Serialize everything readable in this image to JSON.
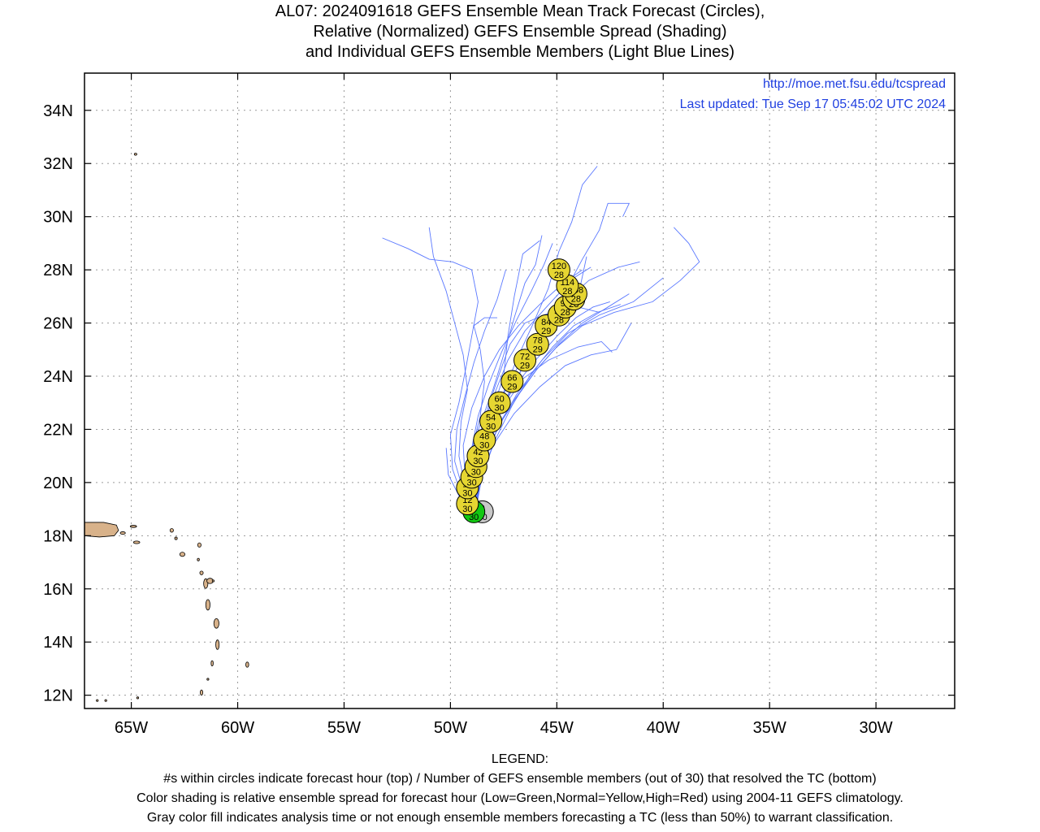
{
  "title": {
    "line1": "AL07: 2024091618 GEFS Ensemble Mean Track Forecast (Circles),",
    "line2": "Relative (Normalized) GEFS Ensemble Spread (Shading)",
    "line3": "and Individual GEFS Ensemble Members (Light Blue Lines)"
  },
  "annotations": {
    "url": "http://moe.met.fsu.edu/tcspread",
    "updated": "Last updated: Tue Sep 17 05:45:02 UTC 2024"
  },
  "axes": {
    "lon_range": [
      -67.2,
      -26.3
    ],
    "lat_range": [
      11.5,
      35.4
    ],
    "x_ticks": [
      {
        "lon": -65,
        "label": "65W"
      },
      {
        "lon": -60,
        "label": "60W"
      },
      {
        "lon": -55,
        "label": "55W"
      },
      {
        "lon": -50,
        "label": "50W"
      },
      {
        "lon": -45,
        "label": "45W"
      },
      {
        "lon": -40,
        "label": "40W"
      },
      {
        "lon": -35,
        "label": "35W"
      },
      {
        "lon": -30,
        "label": "30W"
      }
    ],
    "y_ticks": [
      {
        "lat": 34,
        "label": "34N"
      },
      {
        "lat": 32,
        "label": "32N"
      },
      {
        "lat": 30,
        "label": "30N"
      },
      {
        "lat": 28,
        "label": "28N"
      },
      {
        "lat": 26,
        "label": "26N"
      },
      {
        "lat": 24,
        "label": "24N"
      },
      {
        "lat": 22,
        "label": "22N"
      },
      {
        "lat": 20,
        "label": "20N"
      },
      {
        "lat": 18,
        "label": "18N"
      },
      {
        "lat": 16,
        "label": "16N"
      },
      {
        "lat": 14,
        "label": "14N"
      },
      {
        "lat": 12,
        "label": "12N"
      }
    ],
    "grid": "dotted"
  },
  "colors": {
    "member_track": "#5a78ff",
    "circle_normal": "#e6d632",
    "circle_low": "#12c812",
    "circle_gray": "#c8c8c8",
    "land": "#d8b28a",
    "annotation": "#1f3fe0"
  },
  "track": [
    {
      "hour": "0",
      "members": "30",
      "lon": -48.5,
      "lat": 18.9,
      "spread": "gray"
    },
    {
      "hour": "6",
      "members": "30",
      "lon": -48.9,
      "lat": 18.9,
      "spread": "low"
    },
    {
      "hour": "12",
      "members": "30",
      "lon": -49.2,
      "lat": 19.2,
      "spread": "normal"
    },
    {
      "hour": "18",
      "members": "30",
      "lon": -49.2,
      "lat": 19.8,
      "spread": "normal"
    },
    {
      "hour": "24",
      "members": "30",
      "lon": -49.0,
      "lat": 20.2,
      "spread": "normal"
    },
    {
      "hour": "36",
      "members": "30",
      "lon": -48.8,
      "lat": 20.6,
      "spread": "normal"
    },
    {
      "hour": "42",
      "members": "30",
      "lon": -48.7,
      "lat": 21.0,
      "spread": "normal"
    },
    {
      "hour": "48",
      "members": "30",
      "lon": -48.4,
      "lat": 21.6,
      "spread": "normal"
    },
    {
      "hour": "54",
      "members": "30",
      "lon": -48.1,
      "lat": 22.3,
      "spread": "normal"
    },
    {
      "hour": "60",
      "members": "30",
      "lon": -47.7,
      "lat": 23.0,
      "spread": "normal"
    },
    {
      "hour": "66",
      "members": "29",
      "lon": -47.1,
      "lat": 23.8,
      "spread": "normal"
    },
    {
      "hour": "72",
      "members": "29",
      "lon": -46.5,
      "lat": 24.6,
      "spread": "normal"
    },
    {
      "hour": "78",
      "members": "29",
      "lon": -45.9,
      "lat": 25.2,
      "spread": "normal"
    },
    {
      "hour": "84",
      "members": "29",
      "lon": -45.5,
      "lat": 25.9,
      "spread": "normal"
    },
    {
      "hour": "90",
      "members": "28",
      "lon": -44.9,
      "lat": 26.3,
      "spread": "normal"
    },
    {
      "hour": "96",
      "members": "28",
      "lon": -44.6,
      "lat": 26.6,
      "spread": "normal"
    },
    {
      "hour": "102",
      "members": "28",
      "lon": -44.2,
      "lat": 26.9,
      "spread": "normal"
    },
    {
      "hour": "108",
      "members": "28",
      "lon": -44.1,
      "lat": 27.1,
      "spread": "normal"
    },
    {
      "hour": "114",
      "members": "28",
      "lon": -44.5,
      "lat": 27.4,
      "spread": "normal"
    },
    {
      "hour": "120",
      "members": "28",
      "lon": -44.9,
      "lat": 28.0,
      "spread": "normal"
    }
  ],
  "members": [
    [
      [
        -48.8,
        19.0
      ],
      [
        -49.5,
        19.6
      ],
      [
        -49.9,
        20.5
      ],
      [
        -50.0,
        21.8
      ],
      [
        -49.6,
        23.0
      ],
      [
        -49.3,
        24.2
      ],
      [
        -49.0,
        25.5
      ],
      [
        -48.7,
        26.8
      ],
      [
        -49.0,
        28.0
      ],
      [
        -49.9,
        28.3
      ],
      [
        -51.0,
        28.4
      ],
      [
        -52.0,
        28.8
      ],
      [
        -53.2,
        29.2
      ]
    ],
    [
      [
        -48.8,
        19.0
      ],
      [
        -49.3,
        19.8
      ],
      [
        -49.6,
        21.0
      ],
      [
        -49.5,
        22.3
      ],
      [
        -49.2,
        23.5
      ],
      [
        -49.4,
        24.8
      ],
      [
        -49.8,
        26.0
      ],
      [
        -50.2,
        27.2
      ],
      [
        -50.8,
        28.5
      ],
      [
        -51.0,
        29.6
      ]
    ],
    [
      [
        -48.8,
        19.0
      ],
      [
        -49.1,
        20.0
      ],
      [
        -49.0,
        21.2
      ],
      [
        -48.6,
        22.5
      ],
      [
        -48.4,
        23.8
      ],
      [
        -48.6,
        25.0
      ],
      [
        -48.9,
        25.9
      ],
      [
        -48.4,
        26.2
      ],
      [
        -47.8,
        26.2
      ]
    ],
    [
      [
        -48.8,
        19.0
      ],
      [
        -49.0,
        20.2
      ],
      [
        -48.6,
        21.5
      ],
      [
        -48.0,
        22.8
      ],
      [
        -47.5,
        24.0
      ],
      [
        -47.3,
        25.5
      ],
      [
        -47.0,
        27.0
      ],
      [
        -46.6,
        28.6
      ],
      [
        -45.8,
        29.1
      ]
    ],
    [
      [
        -48.8,
        19.0
      ],
      [
        -48.8,
        20.4
      ],
      [
        -48.3,
        21.8
      ],
      [
        -47.6,
        23.2
      ],
      [
        -46.9,
        24.6
      ],
      [
        -46.1,
        26.0
      ],
      [
        -45.4,
        27.3
      ],
      [
        -44.9,
        28.7
      ],
      [
        -44.3,
        29.8
      ],
      [
        -43.8,
        31.2
      ],
      [
        -43.1,
        31.9
      ]
    ],
    [
      [
        -48.8,
        19.0
      ],
      [
        -48.6,
        20.5
      ],
      [
        -48.0,
        22.0
      ],
      [
        -47.2,
        23.4
      ],
      [
        -46.3,
        24.8
      ],
      [
        -45.5,
        26.0
      ],
      [
        -44.6,
        27.2
      ],
      [
        -43.8,
        28.4
      ],
      [
        -43.0,
        29.5
      ],
      [
        -42.6,
        30.5
      ],
      [
        -41.6,
        30.5
      ],
      [
        -41.9,
        30.0
      ]
    ],
    [
      [
        -48.8,
        19.0
      ],
      [
        -48.7,
        20.3
      ],
      [
        -48.1,
        21.7
      ],
      [
        -47.1,
        23.0
      ],
      [
        -46.0,
        24.2
      ],
      [
        -45.0,
        25.1
      ],
      [
        -43.8,
        25.9
      ],
      [
        -42.3,
        26.4
      ],
      [
        -40.5,
        26.8
      ],
      [
        -39.2,
        27.6
      ],
      [
        -38.3,
        28.3
      ],
      [
        -38.8,
        29.0
      ],
      [
        -39.5,
        29.6
      ]
    ],
    [
      [
        -48.8,
        19.0
      ],
      [
        -48.9,
        20.2
      ],
      [
        -48.4,
        21.4
      ],
      [
        -47.6,
        22.7
      ],
      [
        -46.6,
        23.9
      ],
      [
        -45.4,
        24.6
      ],
      [
        -44.0,
        25.1
      ],
      [
        -42.9,
        25.3
      ],
      [
        -42.4,
        24.9
      ]
    ],
    [
      [
        -48.8,
        19.0
      ],
      [
        -48.5,
        20.6
      ],
      [
        -47.8,
        22.0
      ],
      [
        -46.9,
        23.3
      ],
      [
        -45.7,
        24.6
      ],
      [
        -44.5,
        25.6
      ],
      [
        -43.0,
        26.3
      ],
      [
        -41.4,
        26.8
      ],
      [
        -40.0,
        27.7
      ]
    ],
    [
      [
        -48.8,
        19.0
      ],
      [
        -49.6,
        19.5
      ],
      [
        -50.1,
        20.3
      ],
      [
        -50.2,
        21.3
      ]
    ],
    [
      [
        -48.8,
        19.0
      ],
      [
        -49.3,
        20.0
      ],
      [
        -49.4,
        21.4
      ],
      [
        -49.0,
        22.8
      ],
      [
        -48.4,
        24.0
      ],
      [
        -47.7,
        25.0
      ],
      [
        -46.8,
        25.9
      ],
      [
        -45.8,
        26.7
      ],
      [
        -44.7,
        27.5
      ],
      [
        -43.8,
        28.0
      ]
    ],
    [
      [
        -48.8,
        19.0
      ],
      [
        -48.9,
        20.1
      ],
      [
        -48.5,
        21.3
      ],
      [
        -47.8,
        22.5
      ],
      [
        -47.0,
        23.6
      ],
      [
        -46.0,
        24.6
      ],
      [
        -45.0,
        25.5
      ],
      [
        -44.1,
        26.2
      ],
      [
        -43.3,
        26.6
      ],
      [
        -42.5,
        26.8
      ]
    ],
    [
      [
        -48.8,
        19.0
      ],
      [
        -49.2,
        19.9
      ],
      [
        -49.1,
        21.0
      ],
      [
        -48.6,
        22.2
      ],
      [
        -48.0,
        23.5
      ],
      [
        -47.5,
        24.8
      ],
      [
        -47.0,
        26.2
      ],
      [
        -46.5,
        27.5
      ],
      [
        -46.0,
        28.2
      ],
      [
        -45.7,
        29.3
      ]
    ],
    [
      [
        -48.8,
        19.0
      ],
      [
        -48.7,
        20.4
      ],
      [
        -48.2,
        21.7
      ],
      [
        -47.5,
        23.0
      ],
      [
        -46.7,
        24.2
      ],
      [
        -45.8,
        25.4
      ],
      [
        -44.9,
        26.5
      ],
      [
        -44.0,
        27.0
      ],
      [
        -43.6,
        28.5
      ]
    ],
    [
      [
        -48.8,
        19.0
      ],
      [
        -49.0,
        20.3
      ],
      [
        -48.7,
        21.6
      ],
      [
        -48.2,
        22.9
      ],
      [
        -47.7,
        24.1
      ],
      [
        -47.2,
        25.2
      ],
      [
        -46.5,
        26.0
      ],
      [
        -45.3,
        26.4
      ],
      [
        -44.0,
        26.6
      ],
      [
        -43.0,
        26.4
      ]
    ],
    [
      [
        -48.8,
        19.0
      ],
      [
        -48.6,
        20.2
      ],
      [
        -48.0,
        21.4
      ],
      [
        -47.0,
        22.6
      ],
      [
        -45.8,
        23.6
      ],
      [
        -44.6,
        24.4
      ],
      [
        -43.4,
        24.8
      ],
      [
        -42.2,
        25.0
      ],
      [
        -41.5,
        26.0
      ]
    ],
    [
      [
        -48.8,
        19.0
      ],
      [
        -49.4,
        19.7
      ],
      [
        -49.8,
        20.8
      ],
      [
        -49.7,
        22.0
      ],
      [
        -49.3,
        23.3
      ],
      [
        -48.9,
        24.5
      ],
      [
        -48.4,
        25.7
      ],
      [
        -47.8,
        26.9
      ],
      [
        -47.4,
        28.0
      ]
    ],
    [
      [
        -48.8,
        19.0
      ],
      [
        -48.9,
        20.0
      ],
      [
        -48.6,
        21.1
      ],
      [
        -48.1,
        22.3
      ],
      [
        -47.4,
        23.5
      ],
      [
        -46.6,
        24.7
      ],
      [
        -45.6,
        25.8
      ],
      [
        -44.6,
        26.8
      ],
      [
        -43.5,
        27.6
      ],
      [
        -42.1,
        28.1
      ],
      [
        -41.1,
        28.3
      ]
    ],
    [
      [
        -48.8,
        19.0
      ],
      [
        -48.7,
        20.1
      ],
      [
        -48.3,
        21.2
      ],
      [
        -47.6,
        22.3
      ],
      [
        -46.8,
        23.3
      ],
      [
        -45.9,
        24.3
      ],
      [
        -44.9,
        25.2
      ],
      [
        -43.8,
        26.0
      ],
      [
        -42.6,
        26.6
      ],
      [
        -41.6,
        27.1
      ]
    ],
    [
      [
        -48.8,
        19.0
      ],
      [
        -49.1,
        20.1
      ],
      [
        -49.0,
        21.3
      ],
      [
        -48.7,
        22.5
      ],
      [
        -48.2,
        23.7
      ],
      [
        -47.6,
        24.9
      ],
      [
        -46.9,
        26.1
      ],
      [
        -46.2,
        27.2
      ],
      [
        -45.6,
        28.2
      ],
      [
        -45.2,
        29.0
      ]
    ],
    [
      [
        -48.8,
        19.0
      ],
      [
        -48.5,
        20.3
      ],
      [
        -47.9,
        21.6
      ],
      [
        -47.1,
        22.9
      ],
      [
        -46.2,
        24.1
      ],
      [
        -45.2,
        25.1
      ],
      [
        -44.2,
        25.9
      ],
      [
        -43.1,
        26.4
      ],
      [
        -42.0,
        26.7
      ]
    ],
    [
      [
        -48.8,
        19.0
      ],
      [
        -49.0,
        20.0
      ],
      [
        -48.8,
        21.1
      ],
      [
        -48.4,
        22.3
      ],
      [
        -47.9,
        23.4
      ],
      [
        -47.3,
        24.6
      ],
      [
        -46.5,
        25.7
      ],
      [
        -45.6,
        26.5
      ],
      [
        -44.8,
        27.2
      ],
      [
        -44.2,
        27.7
      ],
      [
        -43.4,
        28.1
      ]
    ]
  ],
  "legend": {
    "header": "LEGEND:",
    "line1": "#s within circles indicate forecast hour (top) / Number of GEFS ensemble members (out of 30) that resolved the TC (bottom)",
    "line2": "Color shading is relative ensemble spread for forecast hour (Low=Green,Normal=Yellow,High=Red) using 2004-11 GEFS climatology.",
    "line3": "Gray color fill indicates analysis time or not enough ensemble members forecasting a TC (less than 50%) to warrant classification."
  }
}
